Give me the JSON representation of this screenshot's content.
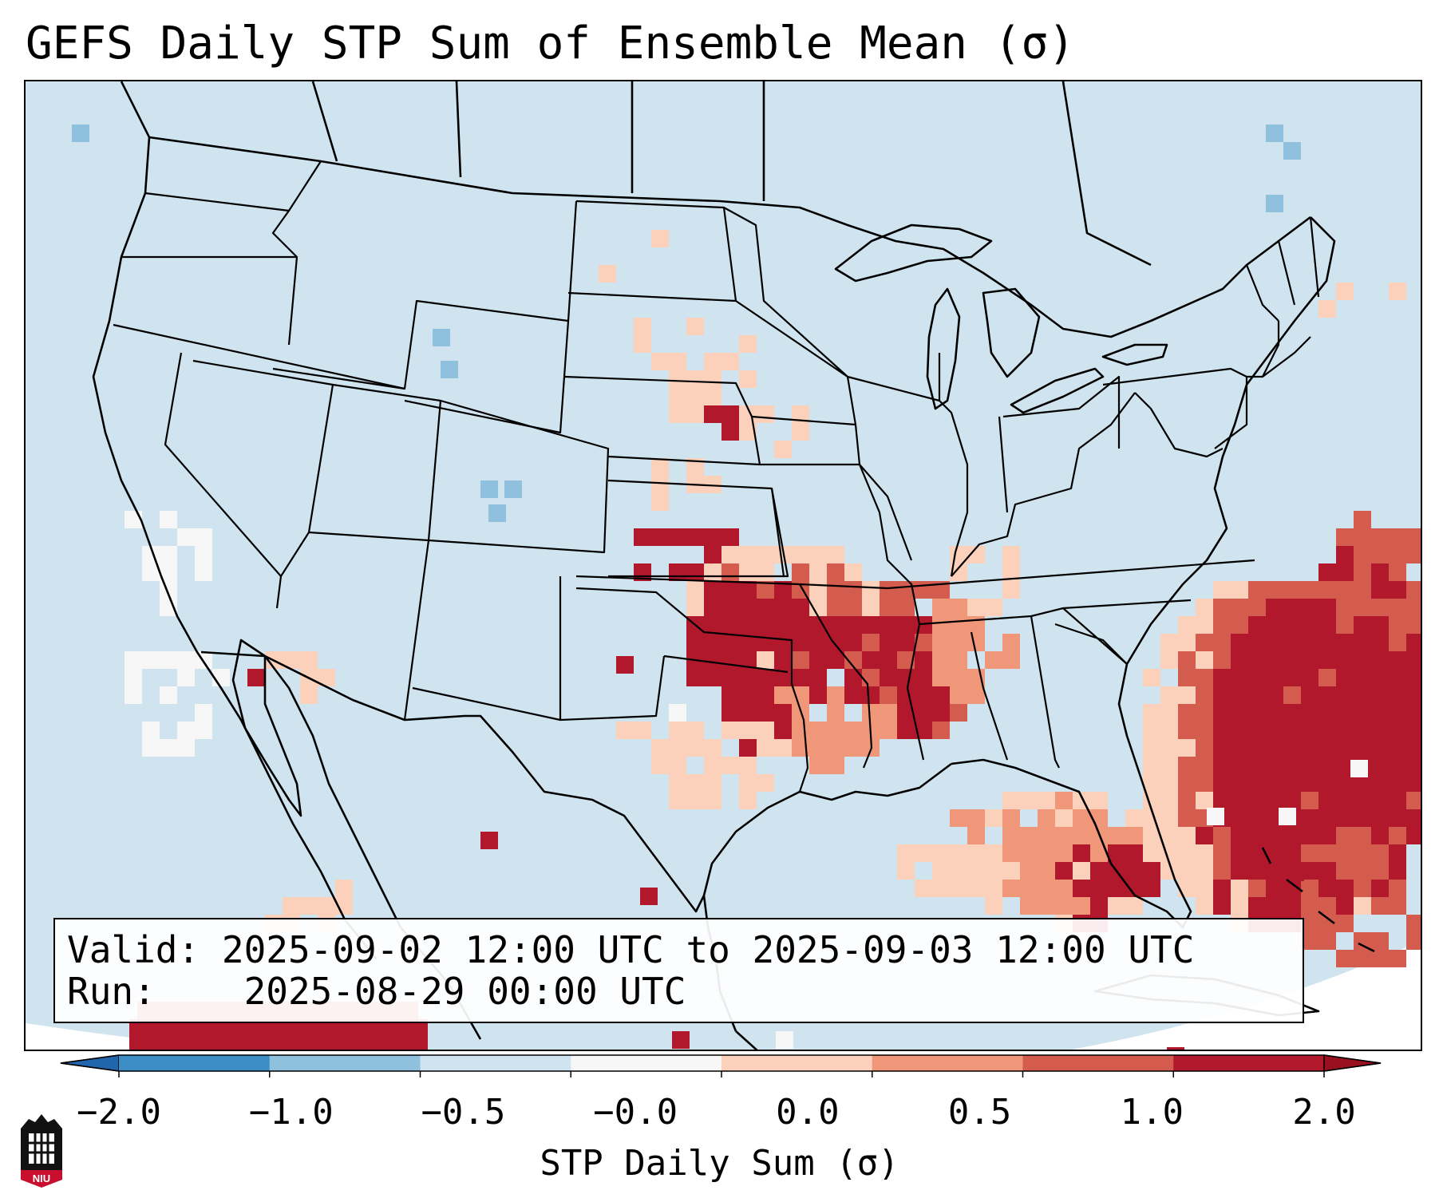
{
  "title": "GEFS Daily STP Sum of Ensemble Mean (σ)",
  "info_box": {
    "valid_label": "Valid:",
    "valid_text": "2025-09-02 12:00 UTC to 2025-09-03 12:00 UTC",
    "run_label": "Run:",
    "run_text": "2025-08-29 00:00 UTC"
  },
  "colorbar": {
    "label": "STP Daily Sum (σ)",
    "ticks": [
      "−2.0",
      "−1.0",
      "−0.5",
      "−0.0",
      "0.0",
      "0.5",
      "1.0",
      "2.0"
    ],
    "colors": [
      "#3d8ec7",
      "#8fc1de",
      "#d0e4ef",
      "#f7f7f7",
      "#fbd1bc",
      "#f0977a",
      "#d45c4e",
      "#b2182b"
    ],
    "extend_low_color": "#2166ac",
    "extend_high_color": "#9b1020"
  },
  "map": {
    "background_color": "#d0e4ef",
    "region": "Contiguous United States, southern Canada, northern Mexico, Gulf of Mexico, western Atlantic",
    "projection": "Lambert Conformal"
  },
  "logo": {
    "text": "NIU",
    "color": "#c8102e"
  }
}
